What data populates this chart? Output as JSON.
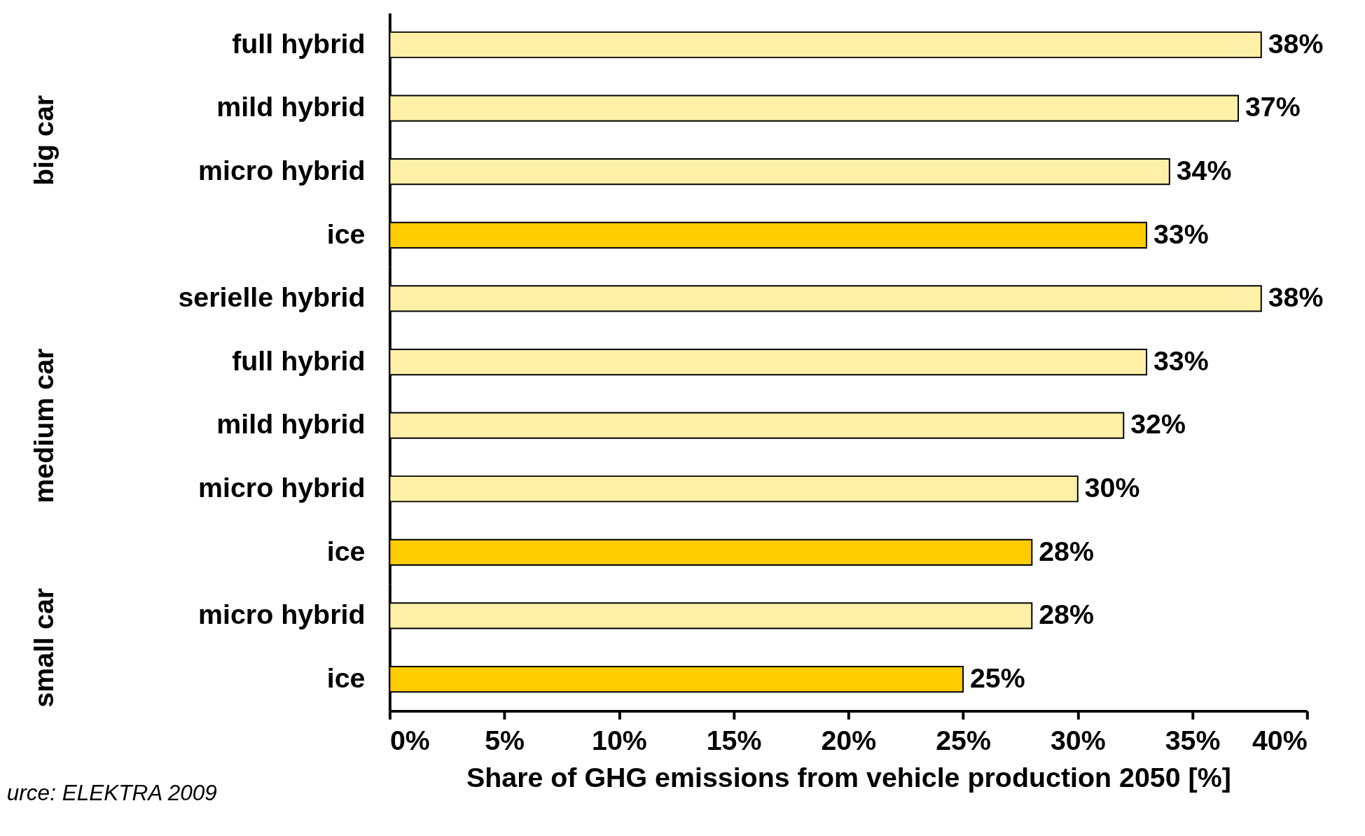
{
  "chart_data": [
    {
      "type": "bar",
      "orientation": "horizontal",
      "ylabel": "big car",
      "categories": [
        "full hybrid",
        "mild hybrid",
        "micro hybrid",
        "ice"
      ],
      "values": [
        38,
        37,
        34,
        33
      ],
      "colors": [
        "#fff0a8",
        "#fff0a8",
        "#fff0a8",
        "#ffcc00"
      ],
      "value_labels": [
        "38%",
        "37%",
        "34%",
        "33%"
      ],
      "xlim": [
        0,
        40
      ],
      "tick_labels": "y",
      "grid": false,
      "legend": false
    },
    {
      "type": "bar",
      "orientation": "horizontal",
      "ylabel": "medium car",
      "categories": [
        "serielle hybrid",
        "full hybrid",
        "mild hybrid",
        "micro hybrid",
        "ice"
      ],
      "values": [
        38,
        33,
        32,
        30,
        28
      ],
      "colors": [
        "#fff0a8",
        "#fff0a8",
        "#fff0a8",
        "#fff0a8",
        "#ffcc00"
      ],
      "value_labels": [
        "38%",
        "33%",
        "32%",
        "30%",
        "28%"
      ],
      "xlim": [
        0,
        40
      ],
      "tick_labels": "y",
      "grid": false,
      "legend": false
    },
    {
      "type": "bar",
      "orientation": "horizontal",
      "ylabel": "small car",
      "xlabel": "Share of GHG emissions from vehicle production 2050 [%]",
      "categories": [
        "micro hybrid",
        "ice"
      ],
      "values": [
        28,
        25
      ],
      "colors": [
        "#fff0a8",
        "#ffcc00"
      ],
      "value_labels": [
        "28%",
        "25%"
      ],
      "xlim": [
        0,
        40
      ],
      "xticks": [
        {
          "value": 0,
          "label": "0%"
        },
        {
          "value": 5,
          "label": "5%"
        },
        {
          "value": 10,
          "label": "10%"
        },
        {
          "value": 15,
          "label": "15%"
        },
        {
          "value": 20,
          "label": "20%"
        },
        {
          "value": 25,
          "label": "25%"
        },
        {
          "value": 30,
          "label": "30%"
        },
        {
          "value": 35,
          "label": "35%"
        },
        {
          "value": 40,
          "label": "40%"
        }
      ],
      "grid": false,
      "legend": false,
      "annotations": [
        "urce: ELEKTRA 2009"
      ]
    }
  ]
}
